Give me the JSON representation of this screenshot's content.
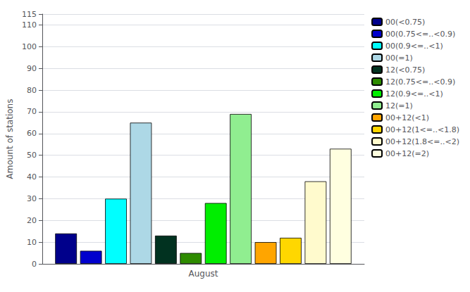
{
  "chart_data": {
    "type": "bar",
    "ylabel": "Amount of stations",
    "categories": [
      "August"
    ],
    "series": [
      {
        "name": "00(<0.75)",
        "color": "#00008B",
        "values": [
          14
        ]
      },
      {
        "name": "00(0.75<=..<0.9)",
        "color": "#0000CD",
        "values": [
          6
        ]
      },
      {
        "name": "00(0.9<=..<1)",
        "color": "#00FFFF",
        "values": [
          30
        ]
      },
      {
        "name": "00(=1)",
        "color": "#ADD8E6",
        "values": [
          65
        ]
      },
      {
        "name": "12(<0.75)",
        "color": "#013220",
        "values": [
          13
        ]
      },
      {
        "name": "12(0.75<=..<0.9)",
        "color": "#2E8B00",
        "values": [
          5
        ]
      },
      {
        "name": "12(0.9<=..<1)",
        "color": "#00EE00",
        "values": [
          28
        ]
      },
      {
        "name": "12(=1)",
        "color": "#90EE90",
        "values": [
          69
        ]
      },
      {
        "name": "00+12(<1)",
        "color": "#FFA500",
        "values": [
          10
        ]
      },
      {
        "name": "00+12(1<=..<1.8)",
        "color": "#FFD700",
        "values": [
          12
        ]
      },
      {
        "name": "00+12(1.8<=..<2)",
        "color": "#FFFACD",
        "values": [
          38
        ]
      },
      {
        "name": "00+12(=2)",
        "color": "#FFFFE0",
        "values": [
          53
        ]
      }
    ],
    "ylim": [
      0,
      115
    ],
    "yticks": [
      0,
      10,
      20,
      30,
      40,
      50,
      60,
      70,
      80,
      90,
      100,
      110
    ],
    "grid": true,
    "legend": "upper right"
  }
}
